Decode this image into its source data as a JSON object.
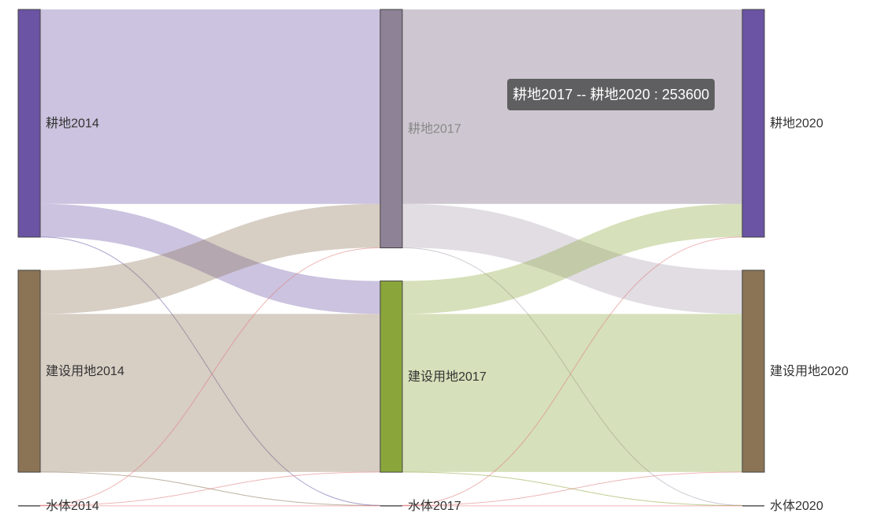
{
  "chart_data": {
    "type": "sankey",
    "nodes": [
      {
        "name": "耕地2014",
        "color": "#6a54a3"
      },
      {
        "name": "建设用地2014",
        "color": "#8b7355"
      },
      {
        "name": "水体2014",
        "color": "#555555"
      },
      {
        "name": "耕地2017",
        "color": "#8e8296"
      },
      {
        "name": "建设用地2017",
        "color": "#8aa63a"
      },
      {
        "name": "水体2017",
        "color": "#555555"
      },
      {
        "name": "耕地2020",
        "color": "#6a54a3"
      },
      {
        "name": "建设用地2020",
        "color": "#8b7355"
      },
      {
        "name": "水体2020",
        "color": "#555555"
      }
    ],
    "links": [
      {
        "source": "耕地2014",
        "target": "耕地2017",
        "value": 253600
      },
      {
        "source": "耕地2014",
        "target": "建设用地2017",
        "value": 43000
      },
      {
        "source": "耕地2014",
        "target": "水体2017",
        "value": 300
      },
      {
        "source": "建设用地2014",
        "target": "耕地2017",
        "value": 57000
      },
      {
        "source": "建设用地2014",
        "target": "建设用地2017",
        "value": 206000
      },
      {
        "source": "建设用地2014",
        "target": "水体2017",
        "value": 300
      },
      {
        "source": "水体2014",
        "target": "耕地2017",
        "value": 300
      },
      {
        "source": "水体2014",
        "target": "建设用地2017",
        "value": 300
      },
      {
        "source": "水体2014",
        "target": "水体2017",
        "value": 300
      },
      {
        "source": "耕地2017",
        "target": "耕地2020",
        "value": 253600
      },
      {
        "source": "耕地2017",
        "target": "建设用地2020",
        "value": 57000
      },
      {
        "source": "耕地2017",
        "target": "水体2020",
        "value": 300
      },
      {
        "source": "建设用地2017",
        "target": "耕地2020",
        "value": 43000
      },
      {
        "source": "建设用地2017",
        "target": "建设用地2020",
        "value": 206000
      },
      {
        "source": "建设用地2017",
        "target": "水体2020",
        "value": 300
      },
      {
        "source": "水体2017",
        "target": "耕地2020",
        "value": 300
      },
      {
        "source": "水体2017",
        "target": "建设用地2020",
        "value": 300
      },
      {
        "source": "水体2017",
        "target": "水体2020",
        "value": 300
      }
    ],
    "highlighted_link": {
      "source": "耕地2017",
      "target": "耕地2020"
    },
    "dimmed_node": "耕地2017"
  },
  "tooltip": {
    "text": "耕地2017 -- 耕地2020 : 253600"
  }
}
